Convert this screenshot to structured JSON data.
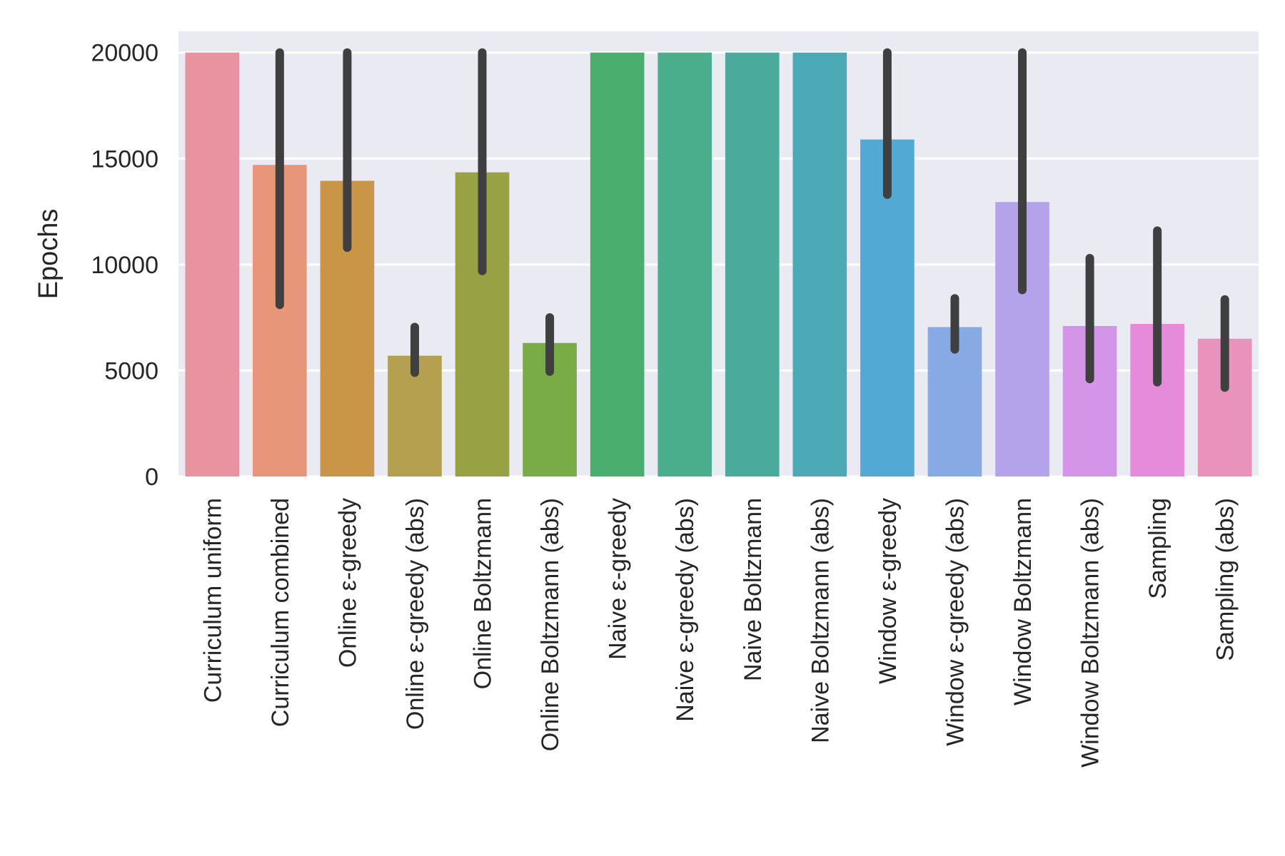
{
  "chart_data": {
    "type": "bar",
    "title": "",
    "xlabel": "",
    "ylabel": "Epochs",
    "ylim": [
      0,
      21000
    ],
    "yticks": [
      0,
      5000,
      10000,
      15000,
      20000
    ],
    "ytick_labels": [
      "0",
      "5000",
      "10000",
      "15000",
      "20000"
    ],
    "grid": true,
    "background": "#EAEAF2",
    "error_bar_color": "#3F3F3F",
    "categories": [
      "Curriculum uniform",
      "Curriculum combined",
      "Online ε-greedy",
      "Online ε-greedy (abs)",
      "Online Boltzmann",
      "Online Boltzmann (abs)",
      "Naive ε-greedy",
      "Naive ε-greedy (abs)",
      "Naive Boltzmann",
      "Naive Boltzmann (abs)",
      "Window ε-greedy",
      "Window ε-greedy (abs)",
      "Window Boltzmann",
      "Window Boltzmann (abs)",
      "Sampling",
      "Sampling (abs)"
    ],
    "values": [
      20000,
      14700,
      13950,
      5700,
      14350,
      6300,
      20000,
      20000,
      20000,
      20000,
      15900,
      7050,
      12950,
      7100,
      7200,
      6500
    ],
    "error_low": [
      null,
      8100,
      10800,
      4900,
      9700,
      4950,
      null,
      null,
      null,
      null,
      13300,
      6000,
      8800,
      4600,
      4450,
      4200
    ],
    "error_high": [
      null,
      20000,
      20000,
      7050,
      20000,
      7500,
      null,
      null,
      null,
      null,
      20000,
      8400,
      20000,
      10300,
      11600,
      8350
    ],
    "colors": [
      "#E8939F",
      "#E7967A",
      "#C99648",
      "#B4A04F",
      "#98A244",
      "#79AC47",
      "#4AAE6F",
      "#4AAE8C",
      "#4AAA9C",
      "#4CAAB7",
      "#52A9D3",
      "#87AAE4",
      "#B4A3EA",
      "#D494E7",
      "#E68BDA",
      "#E892BC"
    ]
  }
}
